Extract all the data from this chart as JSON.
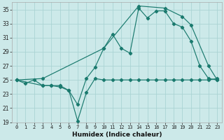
{
  "xlabel": "Humidex (Indice chaleur)",
  "bg_color": "#cce9e9",
  "grid_color": "#aad4d4",
  "line_color": "#1a7a6e",
  "xlim": [
    -0.5,
    23.5
  ],
  "ylim": [
    19,
    36
  ],
  "xticks": [
    0,
    1,
    2,
    3,
    4,
    5,
    6,
    7,
    8,
    9,
    10,
    11,
    12,
    13,
    14,
    15,
    16,
    17,
    18,
    19,
    20,
    21,
    22,
    23
  ],
  "yticks": [
    19,
    21,
    23,
    25,
    27,
    29,
    31,
    33,
    35
  ],
  "series1_x": [
    0,
    1,
    2,
    3,
    4,
    5,
    6,
    7,
    8,
    9,
    10,
    11,
    12,
    13,
    14,
    15,
    16,
    17,
    18,
    19,
    20,
    21,
    22,
    23
  ],
  "series1_y": [
    25.0,
    24.5,
    25.0,
    24.2,
    24.2,
    24.2,
    23.5,
    19.2,
    23.2,
    25.2,
    25.0,
    25.0,
    25.0,
    25.0,
    25.0,
    25.0,
    25.0,
    25.0,
    25.0,
    25.0,
    25.0,
    25.0,
    25.0,
    25.2
  ],
  "series2_x": [
    0,
    3,
    4,
    5,
    6,
    7,
    8,
    9,
    10,
    11,
    12,
    13,
    14,
    15,
    16,
    17,
    18,
    19,
    20,
    21,
    22,
    23
  ],
  "series2_y": [
    25.0,
    24.2,
    24.2,
    24.0,
    23.5,
    21.5,
    25.2,
    26.8,
    29.5,
    31.5,
    29.5,
    28.8,
    35.2,
    33.8,
    34.8,
    34.8,
    33.0,
    32.5,
    30.5,
    27.0,
    25.2,
    25.0
  ],
  "series3_x": [
    0,
    3,
    10,
    14,
    17,
    19,
    20,
    22,
    23
  ],
  "series3_y": [
    25.0,
    25.2,
    29.5,
    35.5,
    35.2,
    34.0,
    32.8,
    27.0,
    25.0
  ]
}
